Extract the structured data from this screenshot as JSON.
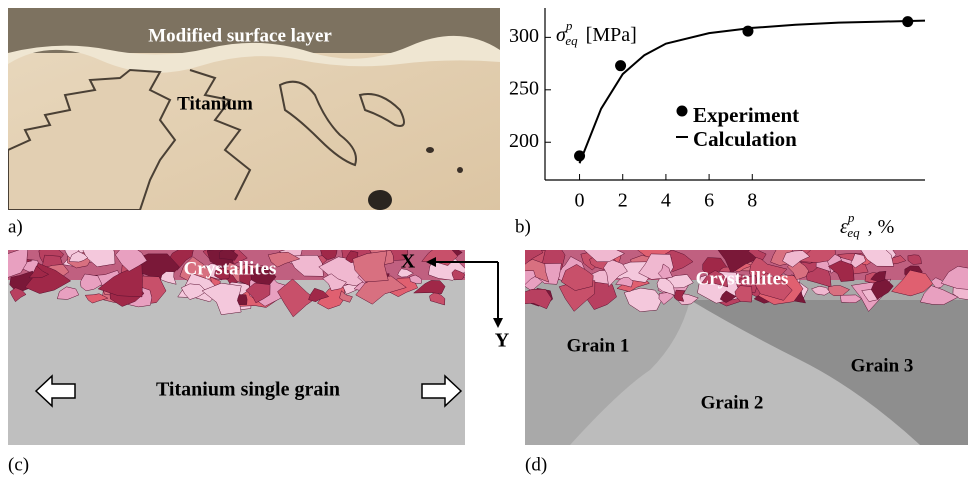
{
  "panels": {
    "a": {
      "label": "a)",
      "surface": "Modified surface layer",
      "bulk": "Titanium"
    },
    "b": {
      "label": "b)"
    },
    "c": {
      "label": "(c)",
      "top": "Crystallites",
      "bulk": "Titanium single grain"
    },
    "d": {
      "label": "(d)",
      "top": "Crystallites",
      "grains": [
        "Grain 1",
        "Grain 2",
        "Grain 3"
      ]
    },
    "axes": {
      "x": "X",
      "y": "Y"
    }
  },
  "chart_data": {
    "type": "scatter",
    "ylabel": {
      "symbol": "σ",
      "sub": "eq",
      "sup": "p",
      "unit": "[MPa]"
    },
    "xlabel": {
      "symbol": "ε",
      "sub": "eq",
      "sup": "p",
      "unit": ", %"
    },
    "xlim": [
      -1.6,
      16
    ],
    "ylim": [
      164,
      328
    ],
    "xticks": [
      0,
      2,
      4,
      6,
      8
    ],
    "yticks": [
      200,
      250,
      300
    ],
    "legend": "center",
    "series": [
      {
        "name": "Experiment",
        "color": "#000000",
        "style": "markers",
        "x": [
          0,
          1.9,
          7.8,
          15.2
        ],
        "values": [
          187,
          273,
          306,
          315
        ]
      },
      {
        "name": "Calculation",
        "color": "#000000",
        "style": "line",
        "x": [
          0,
          1,
          2,
          3,
          4,
          6,
          8,
          10,
          12,
          14,
          16
        ],
        "values": [
          180,
          232,
          265,
          283,
          294,
          304,
          309,
          312,
          314,
          315,
          316
        ]
      }
    ]
  }
}
